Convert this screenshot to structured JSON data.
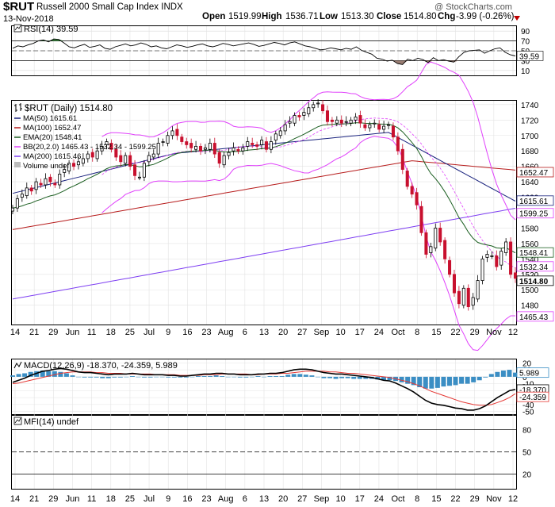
{
  "header": {
    "symbol": "$RUT",
    "name": "Russell 2000 Small Cap Index INDX",
    "date": "13-Nov-2018",
    "open_label": "Open",
    "open": "1519.99",
    "high_label": "High",
    "high": "1536.71",
    "low_label": "Low",
    "low": "1513.30",
    "close_label": "Close",
    "close": "1514.80",
    "chg_label": "Chg",
    "chg": "-3.99 (-0.26%)",
    "brand": "@ StockCharts.com"
  },
  "colors": {
    "up": "#000000",
    "down": "#c8102e",
    "ma50": "#1a237e",
    "ma100": "#b71c1c",
    "ema20": "#1b5e20",
    "bb": "#e040fb",
    "ma200": "#7e3ff2",
    "macd": "#000000",
    "signal": "#e53935",
    "hist": "#3b8ec4",
    "rsi_fill_ob": "#2e7d32",
    "rsi_fill_os": "#8d6e63"
  },
  "chart_data": [
    {
      "type": "line",
      "title": "RSI(14) 39.59",
      "panel": "rsi",
      "ylim": [
        0,
        100
      ],
      "ticks": [
        10,
        30,
        50,
        70,
        90
      ],
      "tick_labels": [
        "10",
        "30",
        "50",
        "70",
        "90"
      ],
      "last_label": "39.59",
      "values": [
        55,
        60,
        58,
        62,
        65,
        70,
        72,
        68,
        74,
        73,
        66,
        58,
        56,
        60,
        63,
        57,
        59,
        62,
        55,
        53,
        58,
        61,
        64,
        60,
        62,
        66,
        63,
        58,
        60,
        56,
        54,
        58,
        62,
        60,
        57,
        59,
        62,
        64,
        60,
        58,
        61,
        65,
        63,
        60,
        62,
        64,
        66,
        63,
        59,
        61,
        64,
        67,
        65,
        62,
        66,
        68,
        64,
        60,
        58,
        55,
        52,
        53,
        56,
        54,
        52,
        55,
        53,
        58,
        51,
        47,
        43,
        35,
        33,
        29,
        31,
        24,
        22,
        33,
        30,
        35,
        32,
        26,
        36,
        30,
        32,
        29,
        27,
        38,
        47,
        50,
        51,
        52,
        45,
        50,
        54,
        56,
        47,
        42,
        39.59
      ]
    },
    {
      "type": "line",
      "title": "$RUT (Daily) 1514.80",
      "panel": "price",
      "ylim": [
        1455,
        1745
      ],
      "ticks": [
        1480,
        1500,
        1520,
        1540,
        1560,
        1580,
        1600,
        1620,
        1640,
        1660,
        1680,
        1700,
        1720,
        1740
      ],
      "tick_labels": [
        "1480",
        "1500",
        "1520",
        "1540",
        "1560",
        "1580",
        "1600",
        "1620",
        "1640",
        "1660",
        "1680",
        "1700",
        "1720",
        "1740"
      ],
      "legend": [
        "MA(50) 1615.61",
        "MA(100) 1652.47",
        "EMA(20) 1548.41",
        "BB(20,2.0) 1465.43 - 1532.34 - 1599.25",
        "MA(200) 1615.46",
        "Volume undef"
      ],
      "last_labels": [
        "1652.47",
        "1615.61",
        "1599.25",
        "1548.41",
        "1532.34",
        "1514.80",
        "1465.43"
      ],
      "x_labels": [
        "14",
        "21",
        "29",
        "Jun",
        "11",
        "18",
        "25",
        "Jul",
        "9",
        "16",
        "23",
        "Aug",
        "6",
        "13",
        "20",
        "27",
        "Sep",
        "10",
        "17",
        "24",
        "Oct",
        "8",
        "15",
        "22",
        "29",
        "Nov",
        "12"
      ],
      "close": [
        1606,
        1618,
        1624,
        1632,
        1628,
        1640,
        1636,
        1644,
        1640,
        1636,
        1650,
        1656,
        1664,
        1660,
        1666,
        1670,
        1676,
        1672,
        1680,
        1686,
        1692,
        1682,
        1672,
        1666,
        1674,
        1660,
        1648,
        1646,
        1664,
        1674,
        1676,
        1690,
        1692,
        1700,
        1706,
        1700,
        1692,
        1688,
        1684,
        1686,
        1680,
        1684,
        1690,
        1676,
        1664,
        1674,
        1678,
        1684,
        1680,
        1684,
        1692,
        1688,
        1686,
        1694,
        1682,
        1692,
        1702,
        1706,
        1714,
        1718,
        1726,
        1724,
        1730,
        1736,
        1740,
        1742,
        1732,
        1718,
        1718,
        1720,
        1716,
        1718,
        1720,
        1724,
        1716,
        1710,
        1714,
        1716,
        1708,
        1712,
        1714,
        1698,
        1680,
        1656,
        1634,
        1624,
        1610,
        1574,
        1546,
        1556,
        1580,
        1562,
        1540,
        1520,
        1496,
        1482,
        1502,
        1478,
        1490,
        1512,
        1540,
        1546,
        1544,
        1530,
        1550,
        1562,
        1520,
        1514.8
      ]
    },
    {
      "type": "line",
      "title": "MACD(12,26,9) -18.370, -24.359, 5.989",
      "panel": "macd",
      "ylim": [
        -55,
        25
      ],
      "ticks": [
        -50,
        -40,
        -30,
        -20,
        -10,
        0,
        10,
        20
      ],
      "tick_labels": [
        "-50",
        "-40",
        "-30",
        "-20",
        "-10",
        "0",
        "10",
        "20"
      ],
      "last_labels": [
        "5.989",
        "-18.370",
        "-24.359"
      ],
      "series": [
        {
          "name": "MACD",
          "values": [
            -8,
            -5,
            -2,
            2,
            5,
            8,
            9,
            11,
            12,
            11,
            9,
            7,
            6,
            6,
            5,
            4,
            3,
            4,
            4,
            4,
            5,
            4,
            3,
            3,
            3,
            3,
            2,
            2,
            1,
            1,
            2,
            3,
            4,
            4,
            5,
            5,
            4,
            4,
            3,
            3,
            3,
            4,
            4,
            5,
            5,
            6,
            8,
            10,
            11,
            11,
            10,
            8,
            6,
            5,
            4,
            4,
            3,
            2,
            1,
            0,
            -1,
            -3,
            -5,
            -6,
            -9,
            -13,
            -17,
            -22,
            -28,
            -34,
            -38,
            -40,
            -41,
            -43,
            -45,
            -46,
            -48,
            -48,
            -46,
            -42,
            -36,
            -30,
            -25,
            -20,
            -18.37
          ]
        },
        {
          "name": "Signal",
          "values": [
            -10,
            -9,
            -7,
            -5,
            -3,
            -1,
            1,
            3,
            5,
            6,
            7,
            7,
            7,
            7,
            6,
            6,
            5,
            5,
            5,
            4,
            4,
            4,
            4,
            4,
            3,
            3,
            3,
            3,
            2,
            2,
            2,
            2,
            3,
            3,
            3,
            4,
            4,
            4,
            4,
            4,
            3,
            3,
            4,
            4,
            4,
            5,
            5,
            6,
            7,
            8,
            8,
            8,
            8,
            7,
            7,
            6,
            5,
            5,
            4,
            3,
            2,
            1,
            0,
            -1,
            -3,
            -5,
            -7,
            -10,
            -13,
            -17,
            -21,
            -24,
            -27,
            -30,
            -33,
            -36,
            -38,
            -40,
            -41,
            -41,
            -40,
            -37,
            -34,
            -30,
            -24.359
          ]
        }
      ]
    },
    {
      "type": "line",
      "title": "MFI(14) undef",
      "panel": "mfi",
      "ylim": [
        0,
        100
      ],
      "ticks": [
        20,
        50,
        80
      ],
      "tick_labels": [
        "20",
        "50",
        "80"
      ],
      "values": []
    }
  ]
}
